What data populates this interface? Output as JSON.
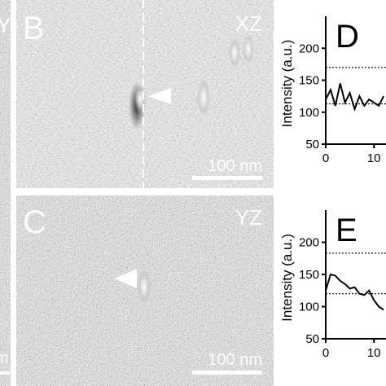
{
  "panel_a": {
    "label": "Y",
    "scale_bar": "m"
  },
  "panel_b": {
    "letter": "B",
    "plane": "XZ",
    "scale_bar": "100 nm"
  },
  "panel_c": {
    "letter": "C",
    "plane": "YZ",
    "scale_bar": "100 nm"
  },
  "chart_data": [
    {
      "type": "line",
      "letter": "D",
      "ylabel": "Intensity (a.u.)",
      "x": [
        0,
        1,
        2,
        3,
        4,
        5,
        6,
        7,
        8,
        9,
        10,
        11,
        12
      ],
      "series": [
        {
          "name": "profile",
          "color": "#000000",
          "values": [
            120,
            135,
            110,
            145,
            115,
            130,
            105,
            125,
            110,
            120,
            115,
            110,
            125
          ]
        }
      ],
      "reference_lines": [
        170,
        113
      ],
      "xlim": [
        0,
        12.5
      ],
      "xticks": [
        0,
        10
      ],
      "ylim": [
        50,
        250
      ],
      "yticks": [
        50,
        100,
        150,
        200
      ]
    },
    {
      "type": "line",
      "letter": "E",
      "ylabel": "Intensity (a.u.)",
      "x": [
        0,
        1,
        2,
        3,
        4,
        5,
        6,
        7,
        8,
        9,
        10,
        11,
        12
      ],
      "series": [
        {
          "name": "profile",
          "color": "#000000",
          "values": [
            125,
            150,
            148,
            140,
            135,
            128,
            130,
            120,
            118,
            125,
            110,
            100,
            95
          ]
        }
      ],
      "reference_lines": [
        183,
        120
      ],
      "xlim": [
        0,
        12.5
      ],
      "xticks": [
        0,
        10
      ],
      "ylim": [
        50,
        250
      ],
      "yticks": [
        50,
        100,
        150,
        200
      ]
    }
  ]
}
